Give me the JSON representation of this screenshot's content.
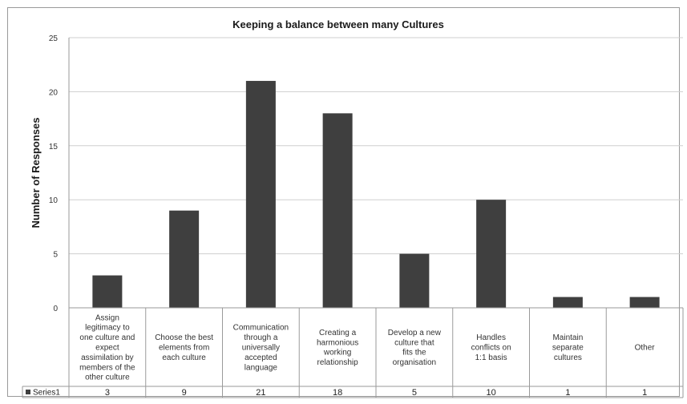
{
  "chart_data": {
    "type": "bar",
    "title": "Keeping a balance between many Cultures",
    "ylabel": "Number of  Responses",
    "xlabel": "",
    "ylim": [
      0,
      25
    ],
    "yticks": [
      0,
      5,
      10,
      15,
      20,
      25
    ],
    "grid": true,
    "legend_placement": "data-table-left",
    "categories": [
      "Assign legitimacy to one culture and expect assimilation by members of the other culture",
      "Choose the best elements from each culture",
      "Communication through a universally accepted language",
      "Creating a harmonious working relationship",
      "Develop a new culture that fits the organisation",
      "Handles conflicts on 1:1 basis",
      "Maintain separate cultures",
      "Other"
    ],
    "series": [
      {
        "name": "Series1",
        "values": [
          3,
          9,
          21,
          18,
          5,
          10,
          1,
          1
        ],
        "color": "#3f3f3f"
      }
    ]
  }
}
